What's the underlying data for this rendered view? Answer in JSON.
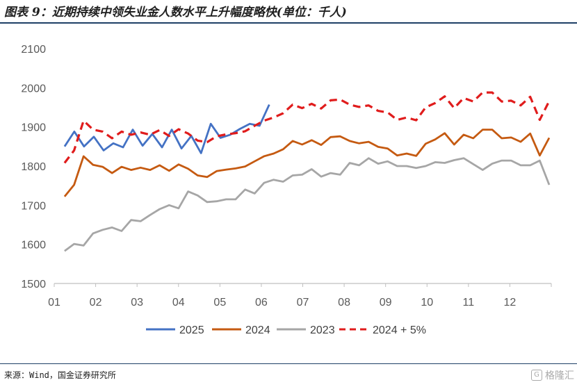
{
  "title": "图表 9：近期持续中领失业金人数水平上升幅度略快(单位：千人)",
  "source": "来源：Wind，国金证券研究所",
  "watermark": {
    "box_text": "G",
    "text": "格隆汇"
  },
  "colors": {
    "s2025": "#4472c4",
    "s2024": "#c55a11",
    "s2023": "#a6a6a6",
    "s2024p5": "#e01c1c",
    "axis": "#bfbfbf",
    "rule": "#1e3f66"
  },
  "chart_data": {
    "type": "line",
    "title": "",
    "xlabel": "",
    "ylabel": "",
    "ylim": [
      1500,
      2100
    ],
    "yticks": [
      1500,
      1600,
      1700,
      1800,
      1900,
      2000,
      2100
    ],
    "xlim": [
      1,
      13
    ],
    "xticks": [
      "01",
      "02",
      "03",
      "04",
      "05",
      "06",
      "07",
      "08",
      "09",
      "10",
      "11",
      "12"
    ],
    "grid": false,
    "legend": "bottom",
    "series": [
      {
        "name": "2025",
        "color": "#4472c4",
        "dash": "solid",
        "x_start": 1.25,
        "values": [
          1850,
          1888,
          1850,
          1875,
          1840,
          1858,
          1848,
          1893,
          1852,
          1882,
          1848,
          1893,
          1845,
          1877,
          1833,
          1908,
          1872,
          1880,
          1895,
          1908,
          1903,
          1957
        ]
      },
      {
        "name": "2024",
        "color": "#c55a11",
        "dash": "solid",
        "x_start": 1.25,
        "values": [
          1722,
          1752,
          1825,
          1803,
          1798,
          1782,
          1798,
          1790,
          1796,
          1790,
          1802,
          1788,
          1804,
          1793,
          1776,
          1772,
          1787,
          1791,
          1794,
          1799,
          1812,
          1825,
          1832,
          1843,
          1864,
          1855,
          1866,
          1854,
          1874,
          1876,
          1864,
          1858,
          1862,
          1849,
          1845,
          1827,
          1832,
          1826,
          1857,
          1868,
          1884,
          1855,
          1880,
          1871,
          1893,
          1893,
          1871,
          1873,
          1862,
          1883,
          1827,
          1872
        ]
      },
      {
        "name": "2023",
        "color": "#a6a6a6",
        "dash": "solid",
        "x_start": 1.25,
        "values": [
          1583,
          1601,
          1597,
          1628,
          1637,
          1643,
          1634,
          1662,
          1659,
          1675,
          1690,
          1700,
          1692,
          1735,
          1725,
          1708,
          1710,
          1715,
          1715,
          1740,
          1730,
          1757,
          1765,
          1760,
          1776,
          1778,
          1792,
          1773,
          1782,
          1778,
          1808,
          1802,
          1820,
          1806,
          1812,
          1800,
          1800,
          1795,
          1800,
          1810,
          1808,
          1815,
          1820,
          1805,
          1790,
          1806,
          1814,
          1814,
          1802,
          1802,
          1814,
          1752
        ]
      },
      {
        "name": "2024 + 5%",
        "color": "#e01c1c",
        "dash": "dashed",
        "x_start": 1.25,
        "values": [
          1808,
          1840,
          1916,
          1893,
          1888,
          1871,
          1888,
          1880,
          1886,
          1880,
          1892,
          1877,
          1894,
          1883,
          1865,
          1861,
          1876,
          1881,
          1884,
          1889,
          1903,
          1916,
          1924,
          1935,
          1957,
          1948,
          1959,
          1947,
          1968,
          1970,
          1957,
          1951,
          1955,
          1941,
          1937,
          1918,
          1924,
          1917,
          1950,
          1961,
          1978,
          1948,
          1974,
          1965,
          1988,
          1988,
          1965,
          1967,
          1955,
          1977,
          1918,
          1966
        ]
      }
    ]
  }
}
